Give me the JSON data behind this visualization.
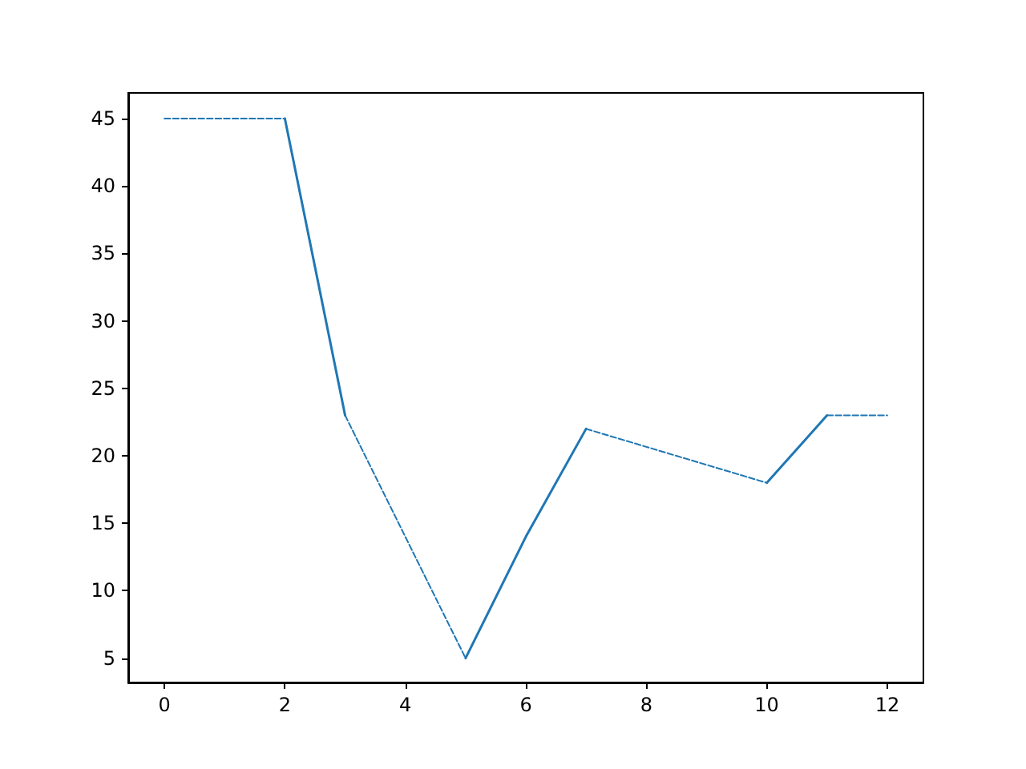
{
  "chart_data": {
    "type": "line",
    "xlim": [
      -0.6,
      12.6
    ],
    "xticks": [
      0,
      2,
      4,
      6,
      8,
      10,
      12
    ],
    "ylim": [
      3.2,
      46.9
    ],
    "yticks": [
      5,
      10,
      15,
      20,
      25,
      30,
      35,
      40,
      45
    ],
    "grid": false,
    "marker": "none",
    "series": [
      {
        "color": "#1f77b4",
        "line_style": "dashed",
        "x": [
          0,
          2
        ],
        "values": [
          45,
          45
        ]
      },
      {
        "color": "#1f77b4",
        "line_style": "solid",
        "x": [
          2,
          3
        ],
        "values": [
          45,
          23
        ]
      },
      {
        "color": "#1f77b4",
        "line_style": "dashed",
        "x": [
          3,
          5
        ],
        "values": [
          23,
          5
        ]
      },
      {
        "color": "#1f77b4",
        "line_style": "solid",
        "x": [
          5,
          6,
          7
        ],
        "values": [
          5,
          14,
          22
        ]
      },
      {
        "color": "#1f77b4",
        "line_style": "dashed",
        "x": [
          7,
          10
        ],
        "values": [
          22,
          18
        ]
      },
      {
        "color": "#1f77b4",
        "line_style": "solid",
        "x": [
          10,
          11
        ],
        "values": [
          18,
          23
        ]
      },
      {
        "color": "#1f77b4",
        "line_style": "dashed",
        "x": [
          11,
          12
        ],
        "values": [
          23,
          23
        ]
      }
    ]
  }
}
